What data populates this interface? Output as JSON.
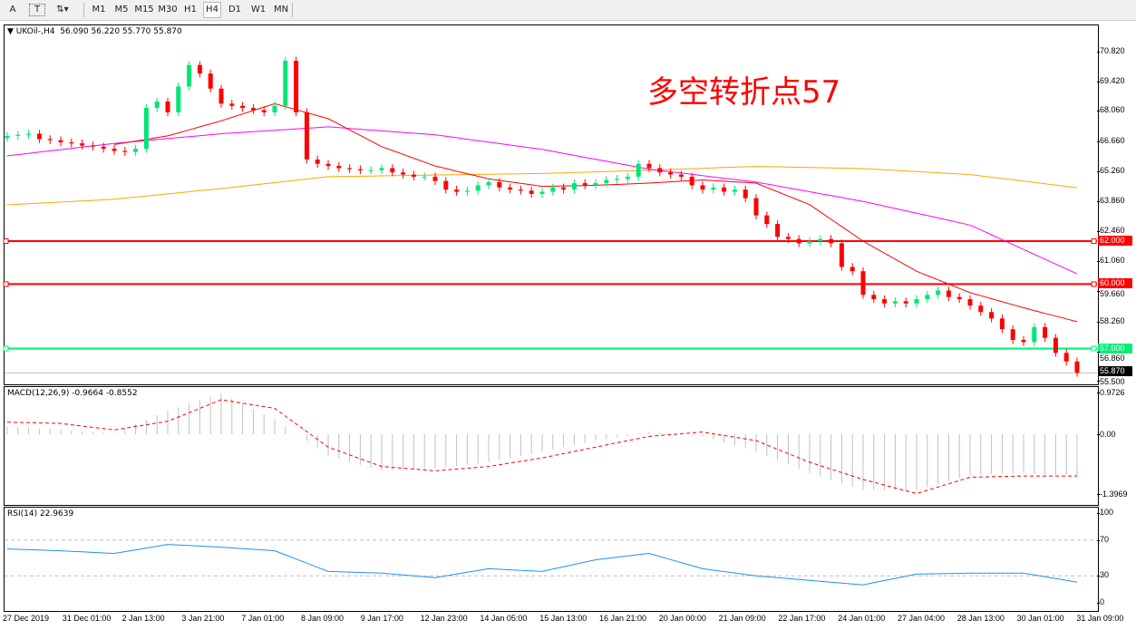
{
  "toolbar": {
    "tools": [
      {
        "icon": "text-icon",
        "label": "A"
      },
      {
        "icon": "text-label-icon",
        "label": "T"
      },
      {
        "icon": "arrows-icon",
        "label": ""
      }
    ],
    "timeframes": [
      "M1",
      "M5",
      "M15",
      "M30",
      "H1",
      "H4",
      "D1",
      "W1",
      "MN"
    ],
    "active_timeframe": "H4"
  },
  "main_panel": {
    "header": "UKOil-,H4  56.090 56.220 55.770 55.870",
    "annotation": "多空转折点57",
    "annotation_color": "#ff0000",
    "y_ticks": [
      "70.820",
      "69.420",
      "68.060",
      "66.660",
      "65.260",
      "63.860",
      "62.460",
      "61.060",
      "59.660",
      "58.260",
      "56.860",
      "55.500"
    ],
    "levels": [
      {
        "price": 62.0,
        "label": "62.000",
        "color": "#ff0000"
      },
      {
        "price": 60.0,
        "label": "60.000",
        "color": "#ff0000"
      },
      {
        "price": 57.0,
        "label": "57.000",
        "color": "#00ee77"
      }
    ],
    "current_price": {
      "price": 55.87,
      "label": "55.870"
    }
  },
  "macd_panel": {
    "header": "MACD(12,26,9) -0.9664 -0.8552",
    "y_ticks": [
      "0.9726",
      "0.00",
      "-1.3969"
    ]
  },
  "rsi_panel": {
    "header": "RSI(14) 22.9639",
    "y_ticks": [
      "100",
      "70",
      "30",
      "0"
    ]
  },
  "x_ticks": [
    "27 Dec 2019",
    "31 Dec 01:00",
    "2 Jan 13:00",
    "3 Jan 21:00",
    "7 Jan 01:00",
    "8 Jan 09:00",
    "9 Jan 17:00",
    "12 Jan 23:00",
    "14 Jan 05:00",
    "15 Jan 13:00",
    "16 Jan 21:00",
    "20 Jan 00:00",
    "21 Jan 09:00",
    "22 Jan 17:00",
    "24 Jan 01:00",
    "27 Jan 04:00",
    "28 Jan 13:00",
    "30 Jan 01:00",
    "31 Jan 09:00"
  ],
  "chart_data": {
    "type": "candlestick",
    "symbol": "UKOil-",
    "timeframe": "H4",
    "ylim": [
      55.5,
      71.2
    ],
    "colors": {
      "bull": "#00e676",
      "bear": "#ff0000",
      "ma_fast": "#ff0000",
      "ma_mid": "#ff00ff",
      "ma_slow": "#ffa500",
      "macd_hist": "#c0c0c0",
      "macd_signal": "#ff0000",
      "rsi": "#1e90ff"
    },
    "close": [
      66.9,
      66.95,
      67.0,
      66.75,
      66.7,
      66.6,
      66.55,
      66.45,
      66.4,
      66.3,
      66.2,
      66.15,
      66.3,
      68.2,
      68.5,
      68.0,
      69.2,
      70.2,
      69.8,
      69.1,
      68.4,
      68.3,
      68.2,
      68.1,
      68.0,
      68.3,
      70.4,
      68.0,
      65.8,
      65.6,
      65.5,
      65.4,
      65.35,
      65.3,
      65.3,
      65.4,
      65.2,
      65.1,
      65.0,
      65.0,
      64.8,
      64.4,
      64.3,
      64.35,
      64.6,
      64.75,
      64.5,
      64.4,
      64.35,
      64.2,
      64.3,
      64.5,
      64.4,
      64.7,
      64.6,
      64.7,
      64.85,
      64.9,
      65.0,
      65.6,
      65.4,
      65.2,
      65.1,
      65.0,
      64.6,
      64.4,
      64.5,
      64.3,
      64.4,
      64.0,
      63.2,
      62.8,
      62.2,
      62.1,
      61.9,
      62.0,
      62.1,
      61.9,
      60.8,
      60.6,
      59.5,
      59.3,
      59.1,
      59.2,
      59.1,
      59.3,
      59.5,
      59.7,
      59.4,
      59.3,
      59.0,
      58.7,
      58.4,
      57.9,
      57.4,
      57.3,
      58.0,
      57.5,
      56.8,
      56.4,
      55.87
    ],
    "ma_fast_every5_from10": [
      66.5,
      66.9,
      67.6,
      68.4,
      67.7,
      66.4,
      65.5,
      64.9,
      64.55,
      64.6,
      64.7,
      64.85,
      64.7,
      63.7,
      62.0,
      60.6,
      59.6,
      58.9,
      58.25
    ],
    "ma_mid_every10": [
      65.97,
      66.55,
      67.0,
      67.32,
      66.95,
      66.27,
      65.35,
      64.75,
      63.85,
      62.75,
      60.48
    ],
    "ma_slow_every10": [
      63.69,
      63.95,
      64.45,
      65.0,
      65.08,
      65.15,
      65.3,
      65.48,
      65.38,
      65.1,
      64.49
    ],
    "macd": {
      "ylim": [
        -1.3969,
        0.9726
      ],
      "hist_every5": [
        0.18,
        0.1,
        0.02,
        0.55,
        0.95,
        0.35,
        -0.5,
        -0.85,
        -0.8,
        -0.65,
        -0.4,
        -0.15,
        0.05,
        -0.05,
        -0.4,
        -0.9,
        -1.3,
        -1.3,
        -0.95,
        -0.9,
        -0.97
      ],
      "signal_every5": [
        0.28,
        0.25,
        0.1,
        0.3,
        0.8,
        0.6,
        -0.3,
        -0.75,
        -0.85,
        -0.75,
        -0.55,
        -0.3,
        -0.05,
        0.05,
        -0.15,
        -0.65,
        -1.05,
        -1.38,
        -1.0,
        -0.97,
        -0.97
      ]
    },
    "rsi": {
      "ylim": [
        0,
        100
      ],
      "levels": [
        70,
        30
      ],
      "values_every5": [
        60,
        58,
        55,
        65,
        62,
        58,
        35,
        33,
        28,
        38,
        35,
        48,
        55,
        38,
        30,
        25,
        20,
        32,
        33,
        33,
        23
      ]
    }
  }
}
